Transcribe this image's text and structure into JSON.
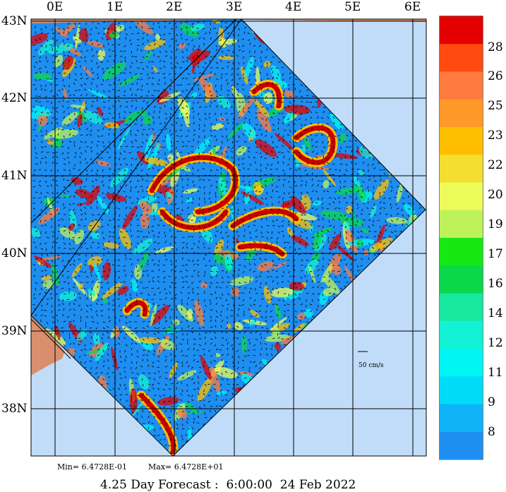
{
  "map": {
    "lon_labels": [
      "0E",
      "1E",
      "2E",
      "3E",
      "4E",
      "5E",
      "6E"
    ],
    "lat_labels": [
      "43N",
      "42N",
      "41N",
      "40N",
      "39N",
      "38N"
    ],
    "colors": {
      "land": "#d98f6e",
      "sea_background": "#c0dcf8",
      "shelf": "#a6c8f3",
      "ocean_base": "#1e8ef0",
      "grid": "#000000"
    }
  },
  "minmax": {
    "min_text": "Min= 6.4728E-01",
    "max_text": "Max= 6.4728E+01"
  },
  "scale_vector": {
    "label": "50 cm/s"
  },
  "forecast_text": "4.25 Day Forecast :  6:00:00  24 Feb 2022",
  "colorbar": {
    "labels": [
      "28",
      "26",
      "25",
      "23",
      "22",
      "20",
      "19",
      "17",
      "16",
      "14",
      "12",
      "11",
      "9",
      "8"
    ],
    "colors": [
      "#e40000",
      "#ff4a10",
      "#ff7a3e",
      "#ff9a2a",
      "#ffbf00",
      "#f4de30",
      "#ecfb5a",
      "#bef25a",
      "#16e814",
      "#0ad84a",
      "#18e8a0",
      "#12f3d6",
      "#00f5f5",
      "#00dcf7",
      "#10b3f8",
      "#1e8ef0"
    ]
  }
}
